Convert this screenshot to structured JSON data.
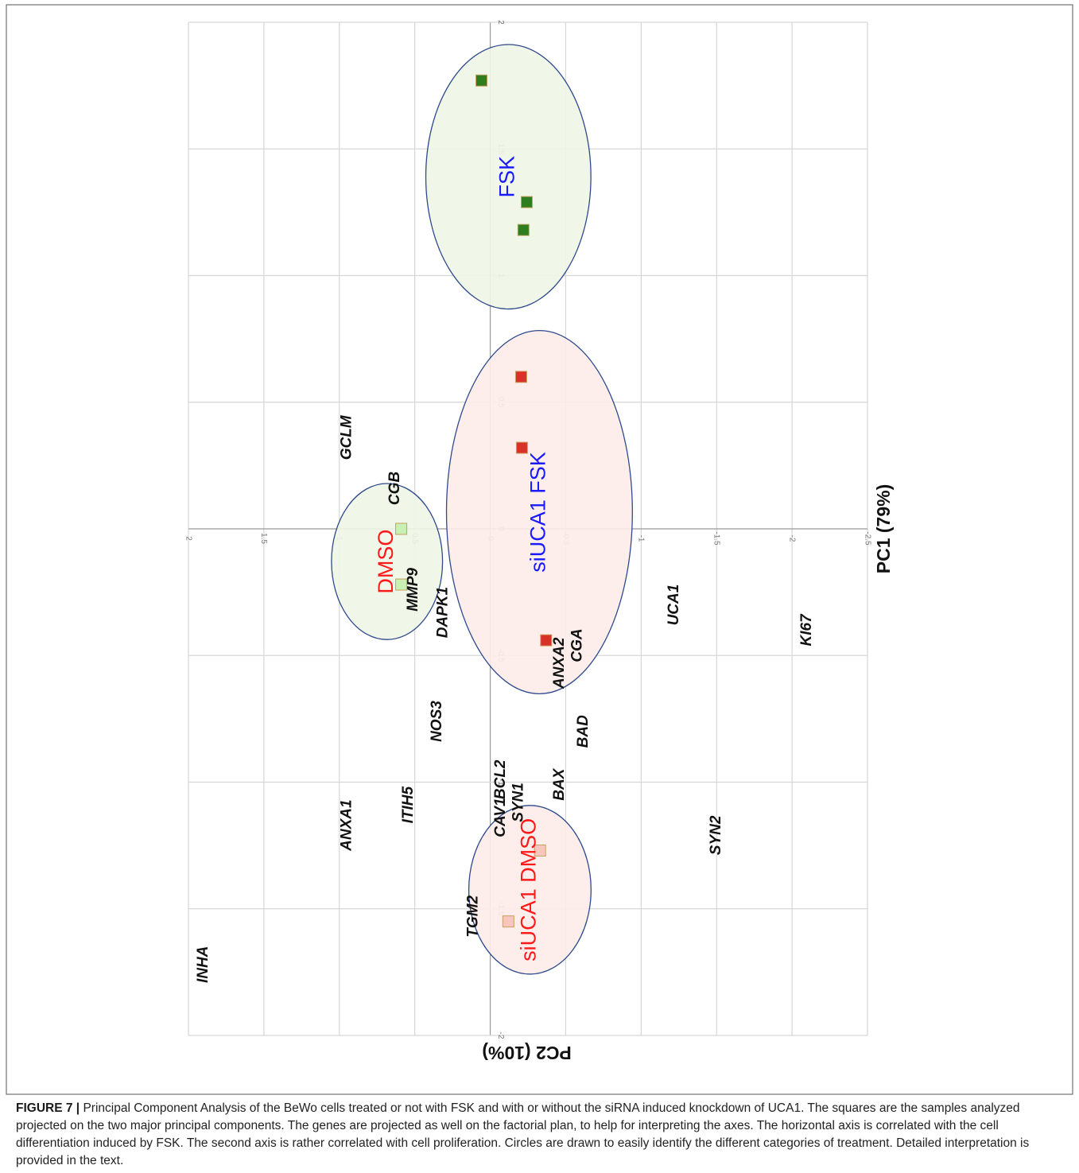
{
  "chart_data": {
    "type": "scatter",
    "xlabel": "PC1 (79%)",
    "ylabel": "PC2 (10%)",
    "xlim": [
      -2,
      2
    ],
    "xticks": [
      -2,
      -1.5,
      -1,
      -0.5,
      0,
      0.5,
      1,
      1.5,
      2
    ],
    "ylim": [
      -2.5,
      2
    ],
    "yticks": [
      -2.5,
      -2,
      -1.5,
      -1,
      -0.5,
      0,
      0.5,
      1,
      1.5,
      2
    ],
    "grid": true,
    "series": [
      {
        "name": "FSK",
        "color": "#2e7d1f",
        "label_color": "#1a1aff",
        "x": [
          1.77,
          1.29,
          1.18
        ],
        "y": [
          0.058,
          -0.242,
          -0.22
        ]
      },
      {
        "name": "siUCA1 FSK",
        "color": "#d9302a",
        "label_color": "#1a1aff",
        "x": [
          0.6,
          0.32,
          -0.44
        ],
        "y": [
          -0.205,
          -0.21,
          -0.37
        ]
      },
      {
        "name": "DMSO",
        "color": "#c9f0b4",
        "label_color": "#ff1a1a",
        "x": [
          0.0,
          -0.22
        ],
        "y": [
          0.59,
          0.59
        ]
      },
      {
        "name": "siUCA1 DMSO",
        "color": "#f7c6bd",
        "label_color": "#ff1a1a",
        "x": [
          -1.27,
          -1.55
        ],
        "y": [
          -0.33,
          -0.12
        ]
      }
    ],
    "genes": {
      "labels": [
        "GCLM",
        "CGB",
        "MMP9",
        "DAPK1",
        "ANXA2",
        "CGA",
        "UCA1",
        "KI67",
        "NOS3",
        "BAD",
        "BCL2",
        "CAV1",
        "SYN1",
        "BAX",
        "ITIH5",
        "ANXA1",
        "SYN2",
        "TGM2",
        "INHA"
      ],
      "x": [
        0.36,
        0.16,
        -0.24,
        -0.33,
        -0.53,
        -0.46,
        -0.3,
        -0.4,
        -0.76,
        -0.8,
        -0.99,
        -1.14,
        -1.08,
        -1.01,
        -1.09,
        -1.17,
        -1.21,
        -1.53,
        -1.72
      ],
      "y": [
        0.95,
        0.63,
        0.51,
        0.31,
        -0.46,
        -0.58,
        -1.22,
        -2.1,
        0.35,
        -0.62,
        -0.07,
        -0.07,
        -0.19,
        -0.46,
        0.54,
        0.95,
        -1.5,
        0.11,
        1.9
      ]
    }
  },
  "caption": {
    "label": "FIGURE 7 |",
    "text": "Principal Component Analysis of the BeWo cells treated or not with FSK and with or without the siRNA induced knockdown of UCA1. The squares are the samples analyzed projected on the two major principal components. The genes are projected as well on the factorial plan, to help for interpreting the axes. The horizontal axis is correlated with the cell differentiation induced by FSK. The second axis is rather correlated with cell proliferation. Circles are drawn to easily identify the different categories of treatment. Detailed interpretation is provided in the text."
  }
}
